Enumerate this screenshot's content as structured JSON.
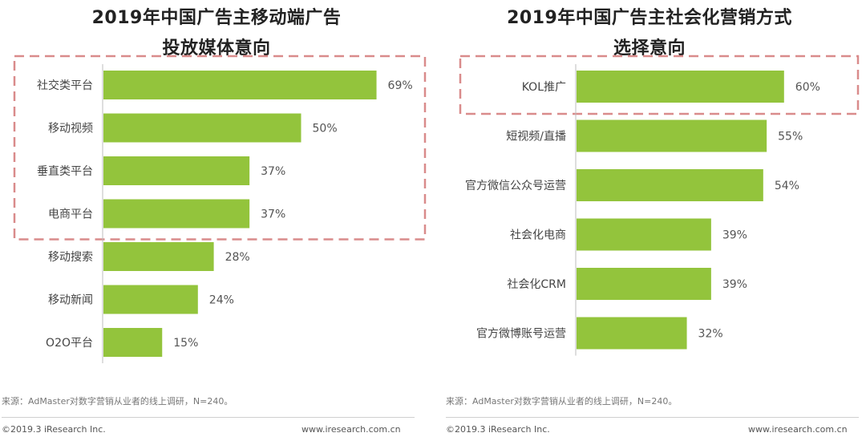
{
  "chart_data": [
    {
      "type": "bar",
      "orientation": "horizontal",
      "title_line1": "2019年中国广告主移动端广告",
      "title_line2": "投放媒体意向",
      "categories": [
        "社交类平台",
        "移动视频",
        "垂直类平台",
        "电商平台",
        "移动搜索",
        "移动新闻",
        "O2O平台"
      ],
      "values": [
        69,
        50,
        37,
        37,
        28,
        24,
        15
      ],
      "value_labels": [
        "69%",
        "50%",
        "37%",
        "37%",
        "28%",
        "24%",
        "15%"
      ],
      "xlim": [
        0,
        100
      ],
      "highlight_box_rows": [
        0,
        3
      ],
      "bar_color": "#93c43c",
      "highlight_border_color": "#d98b8b",
      "source": "来源：AdMaster对数字营销从业者的线上调研，N=240。",
      "copyright": "©2019.3 iResearch Inc.",
      "website": "www.iresearch.com.cn"
    },
    {
      "type": "bar",
      "orientation": "horizontal",
      "title_line1": "2019年中国广告主社会化营销方式",
      "title_line2": "选择意向",
      "categories": [
        "KOL推广",
        "短视频/直播",
        "官方微信公众号运营",
        "社会化电商",
        "社会化CRM",
        "官方微博账号运营"
      ],
      "values": [
        60,
        55,
        54,
        39,
        39,
        32
      ],
      "value_labels": [
        "60%",
        "55%",
        "54%",
        "39%",
        "39%",
        "32%"
      ],
      "xlim": [
        0,
        100
      ],
      "highlight_box_rows": [
        0,
        0
      ],
      "bar_color": "#93c43c",
      "highlight_border_color": "#d98b8b",
      "source": "来源：AdMaster对数字营销从业者的线上调研，N=240。",
      "copyright": "©2019.3 iResearch Inc.",
      "website": "www.iresearch.com.cn"
    }
  ]
}
